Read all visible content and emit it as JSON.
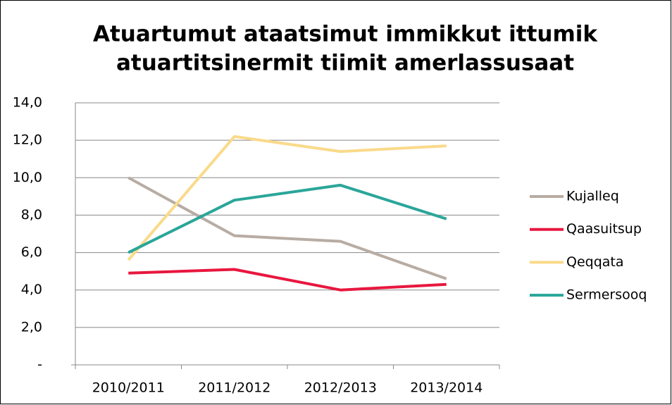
{
  "chart_data": {
    "type": "line",
    "title": [
      "Atuartumut ataatsimut immikkut ittumik",
      "atuartitsinermit tiimit amerlassusaat"
    ],
    "categories": [
      "2010/2011",
      "2011/2012",
      "2012/2013",
      "2013/2014"
    ],
    "series": [
      {
        "name": "Kujalleq",
        "color": "#b8aca3",
        "values": [
          10.0,
          6.9,
          6.6,
          4.6
        ]
      },
      {
        "name": "Qaasuitsup",
        "color": "#e8173e",
        "values": [
          4.9,
          5.1,
          4.0,
          4.3
        ]
      },
      {
        "name": "Qeqqata",
        "color": "#fada8a",
        "values": [
          5.6,
          12.2,
          11.4,
          11.7
        ]
      },
      {
        "name": "Sermersooq",
        "color": "#2aa699",
        "values": [
          6.0,
          8.8,
          9.6,
          7.8
        ]
      }
    ],
    "ylim": [
      0,
      14
    ],
    "yticks": [
      {
        "value": 0,
        "label": "-"
      },
      {
        "value": 2,
        "label": "2,0"
      },
      {
        "value": 4,
        "label": "4,0"
      },
      {
        "value": 6,
        "label": "6,0"
      },
      {
        "value": 8,
        "label": "8,0"
      },
      {
        "value": 10,
        "label": "10,0"
      },
      {
        "value": 12,
        "label": "12,0"
      },
      {
        "value": 14,
        "label": "14,0"
      }
    ],
    "grid": true,
    "legend": "right"
  }
}
